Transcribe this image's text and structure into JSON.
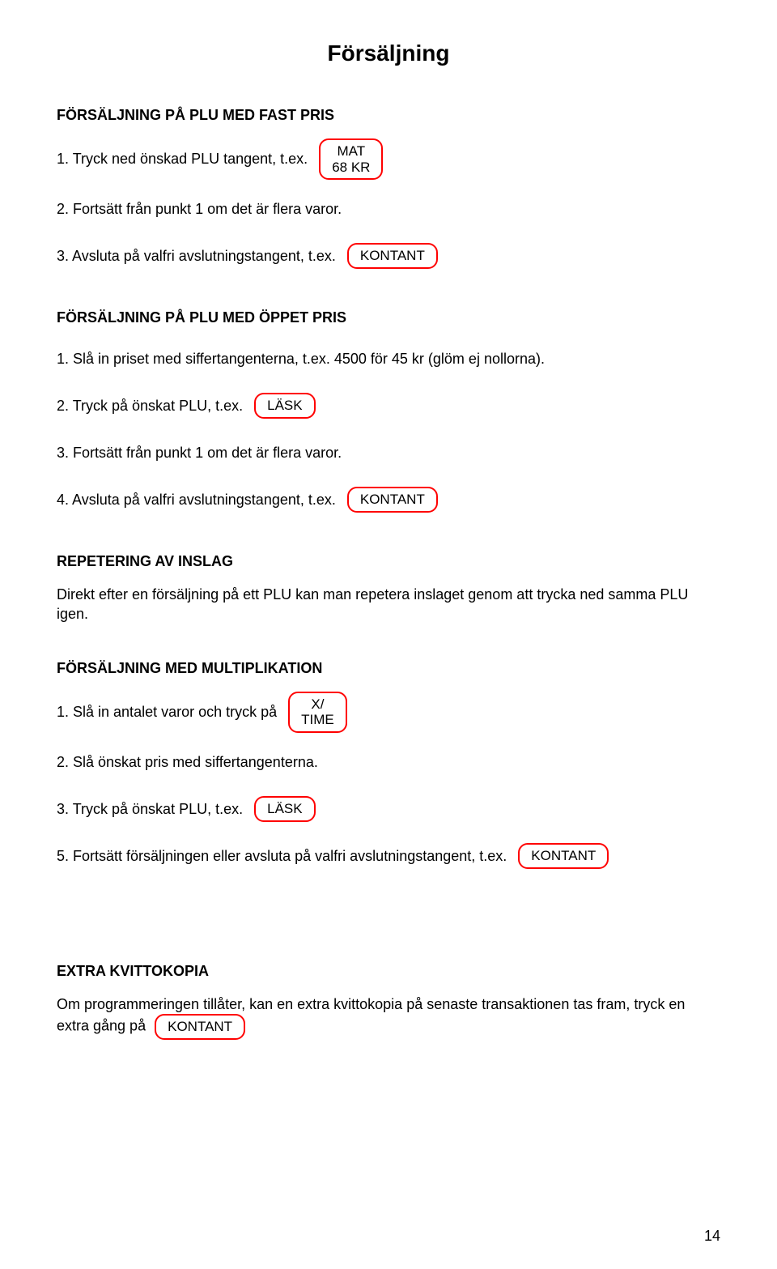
{
  "title": "Försäljning",
  "sections": {
    "s1": {
      "heading": "FÖRSÄLJNING PÅ PLU MED FAST PRIS",
      "step1": "1.  Tryck ned önskad PLU tangent, t.ex.",
      "step1_btn_l1": "MAT",
      "step1_btn_l2": "68 KR",
      "step2": "2.  Fortsätt från punkt 1 om det är flera varor.",
      "step3": "3.  Avsluta på valfri avslutningstangent, t.ex.",
      "step3_btn": "KONTANT"
    },
    "s2": {
      "heading": "FÖRSÄLJNING PÅ PLU MED ÖPPET PRIS",
      "step1": "1.  Slå in priset med siffertangenterna, t.ex. 4500 för 45 kr (glöm ej nollorna).",
      "step2": "2.  Tryck på önskat PLU, t.ex.",
      "step2_btn": "LÄSK",
      "step3": "3.  Fortsätt från punkt 1 om det är flera varor.",
      "step4": "4.  Avsluta på valfri avslutningstangent, t.ex.",
      "step4_btn": "KONTANT"
    },
    "s3": {
      "heading": "REPETERING AV INSLAG",
      "para": "Direkt efter en försäljning på ett PLU kan man repetera inslaget genom att trycka ned samma PLU igen."
    },
    "s4": {
      "heading": "FÖRSÄLJNING MED MULTIPLIKATION",
      "step1": "1.  Slå in antalet varor och tryck på",
      "step1_btn_l1": "X/",
      "step1_btn_l2": "TIME",
      "step2": "2.  Slå önskat pris med siffertangenterna.",
      "step3": "3.  Tryck på önskat PLU, t.ex.",
      "step3_btn": "LÄSK",
      "step5": "5.  Fortsätt försäljningen eller avsluta på valfri avslutningstangent, t.ex.",
      "step5_btn": "KONTANT"
    },
    "s5": {
      "heading": "EXTRA KVITTOKOPIA",
      "para_before": "Om programmeringen tillåter, kan en extra kvittokopia på senaste transaktionen tas fram, tryck en extra gång på",
      "btn": "KONTANT"
    }
  },
  "page_number": "14",
  "colors": {
    "button_border": "#ff0000",
    "text": "#000000",
    "background": "#ffffff"
  }
}
